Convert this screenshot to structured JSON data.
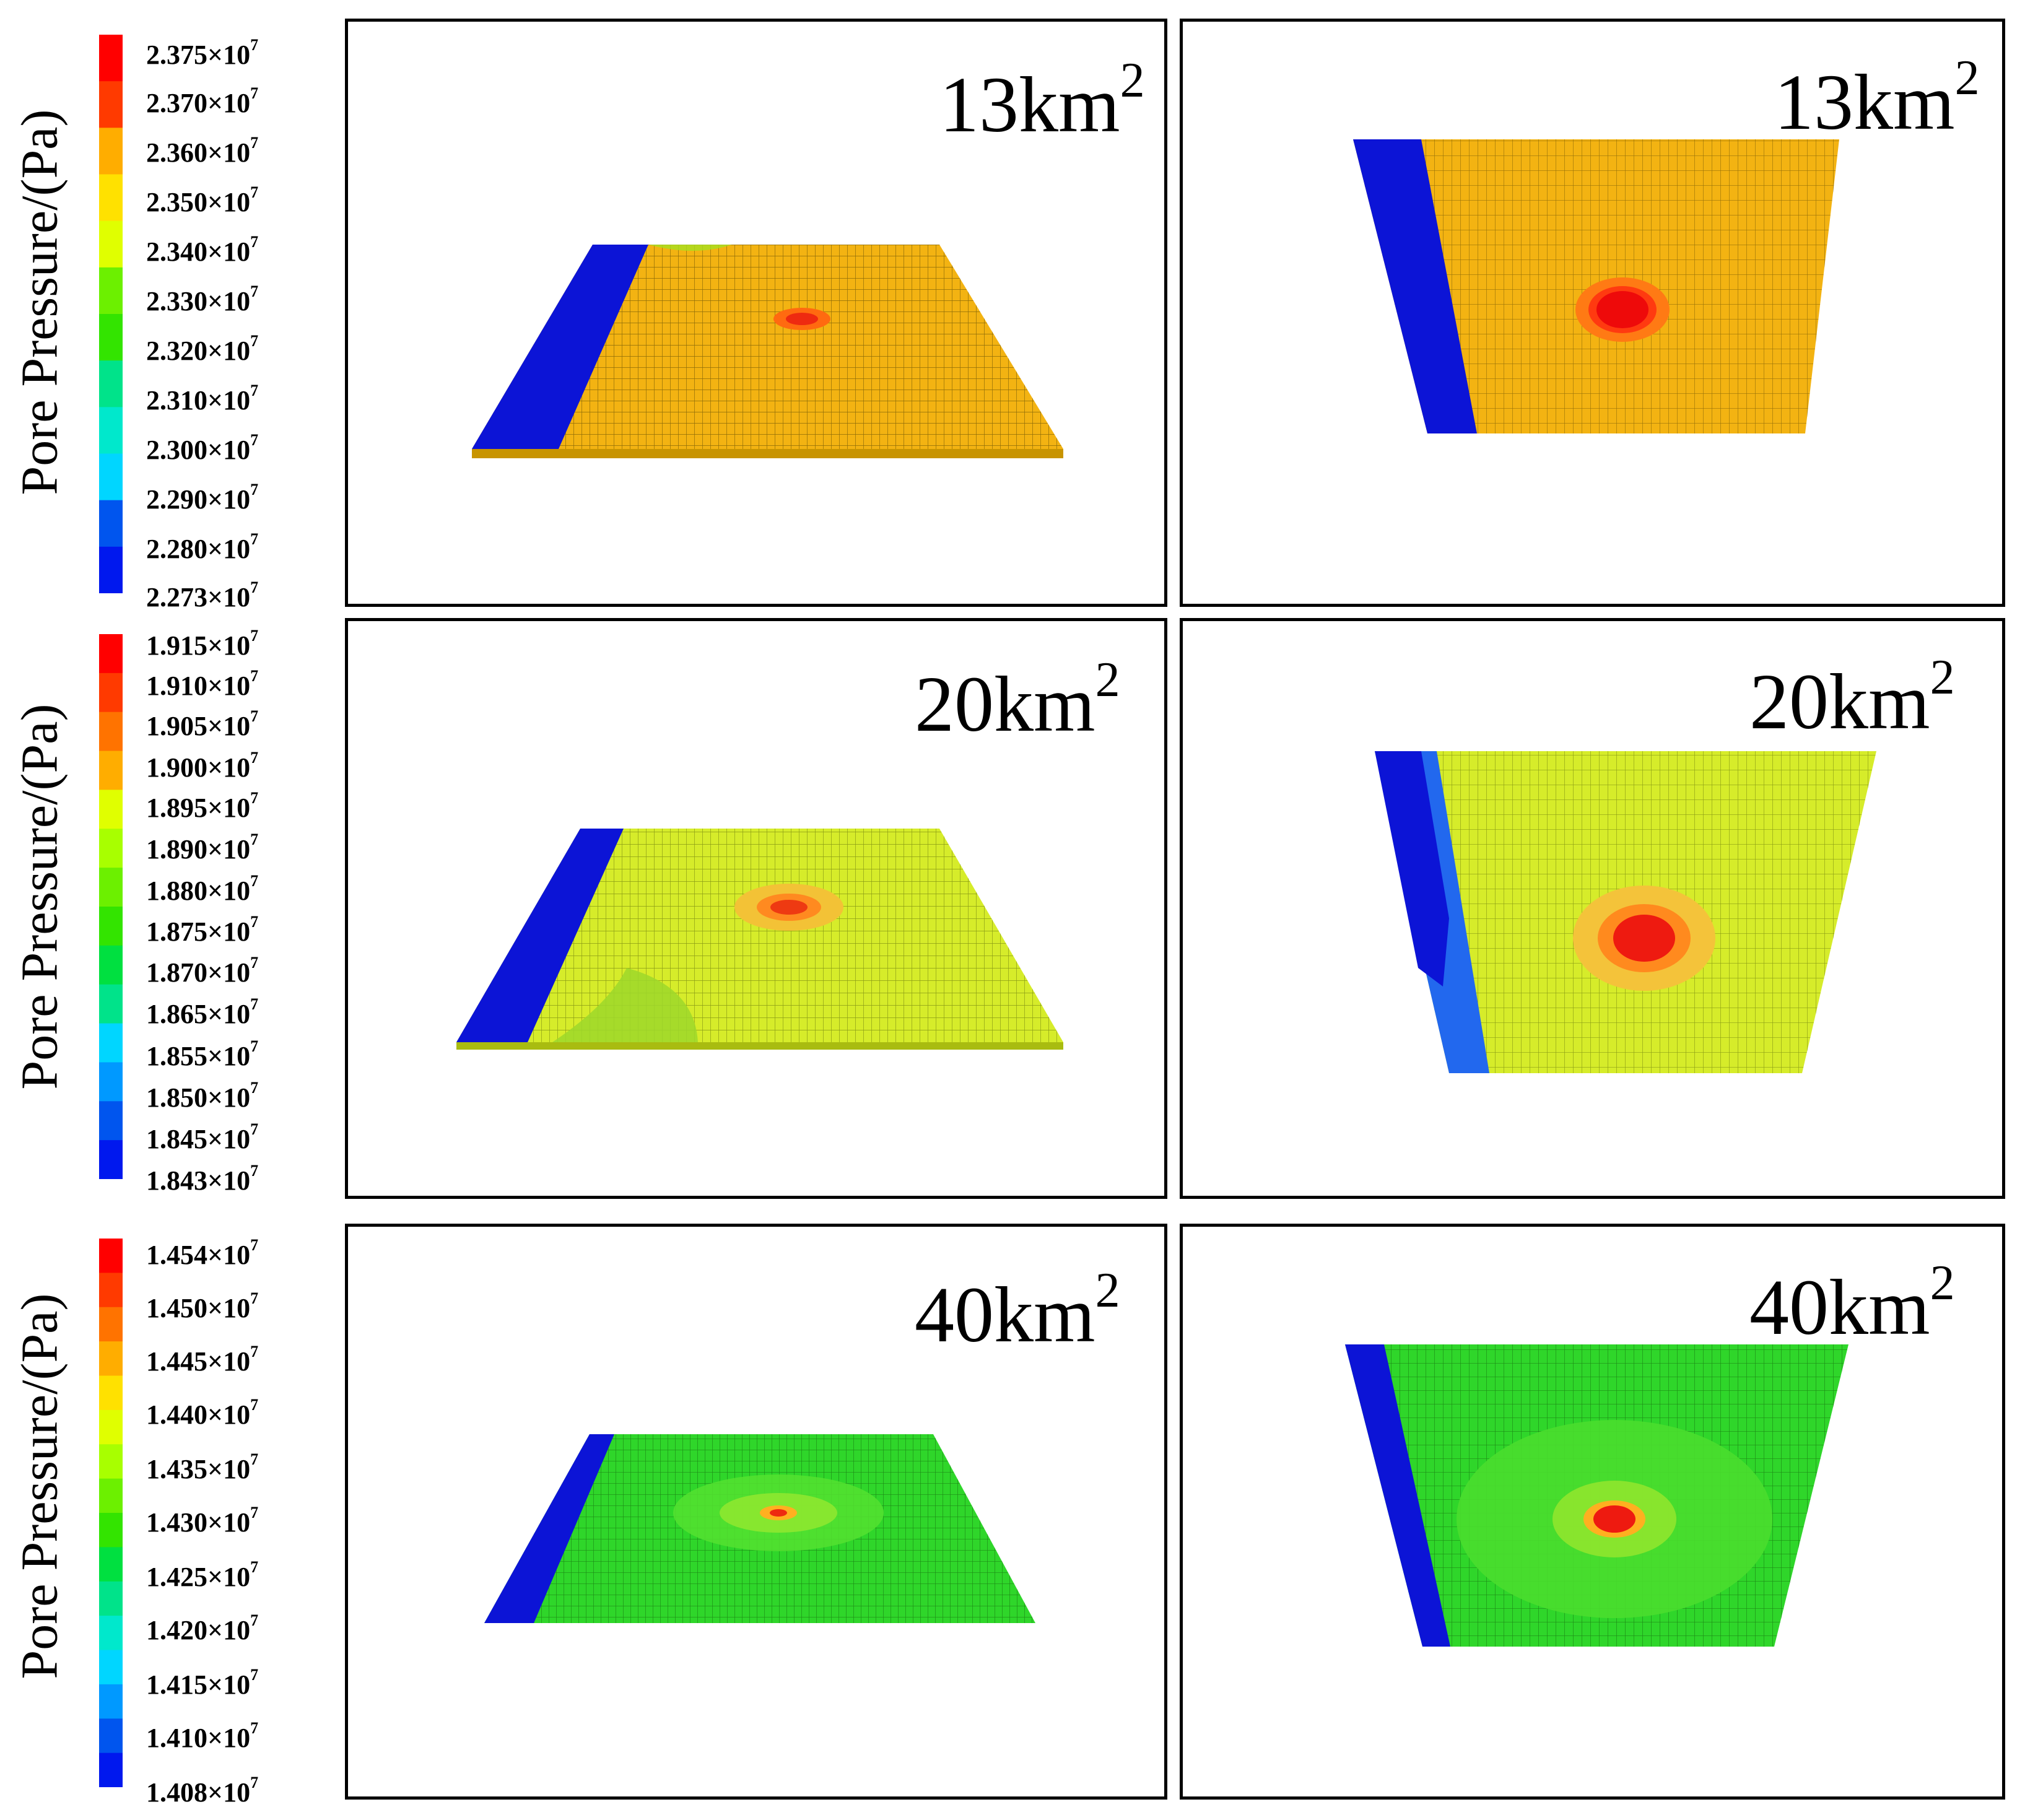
{
  "legend_title": "Pore Pressure/(Pa)",
  "rows": [
    {
      "area_label": "13km",
      "area_exponent": "2",
      "ticks": [
        "2.375×10",
        "2.370×10",
        "2.360×10",
        "2.350×10",
        "2.340×10",
        "2.330×10",
        "2.320×10",
        "2.310×10",
        "2.300×10",
        "2.290×10",
        "2.280×10",
        "2.273×10"
      ],
      "tick_exponent": "7"
    },
    {
      "area_label": "20km",
      "area_exponent": "2",
      "ticks": [
        "1.915×10",
        "1.910×10",
        "1.905×10",
        "1.900×10",
        "1.895×10",
        "1.890×10",
        "1.880×10",
        "1.875×10",
        "1.870×10",
        "1.865×10",
        "1.855×10",
        "1.850×10",
        "1.845×10",
        "1.843×10"
      ],
      "tick_exponent": "7"
    },
    {
      "area_label": "40km",
      "area_exponent": "2",
      "ticks": [
        "1.454×10",
        "1.450×10",
        "1.445×10",
        "1.440×10",
        "1.435×10",
        "1.430×10",
        "1.425×10",
        "1.420×10",
        "1.415×10",
        "1.410×10",
        "1.408×10"
      ],
      "tick_exponent": "7"
    }
  ],
  "colors": {
    "scale": [
      "#ff0000",
      "#ff3a00",
      "#ff7300",
      "#ffad00",
      "#ffe100",
      "#e0ff00",
      "#a8ff00",
      "#6cf000",
      "#33e400",
      "#00e040",
      "#00e38a",
      "#00e8cc",
      "#00d6ff",
      "#0099ff",
      "#0055ee",
      "#0018ee"
    ],
    "boundary_blue": "#0c14d6",
    "plate_13": "#f3b312",
    "plate_20": "#d6ec2a",
    "plate_40": "#2fd62a",
    "hotspot": "#ee1a10",
    "mesh": "#3a3a00"
  }
}
